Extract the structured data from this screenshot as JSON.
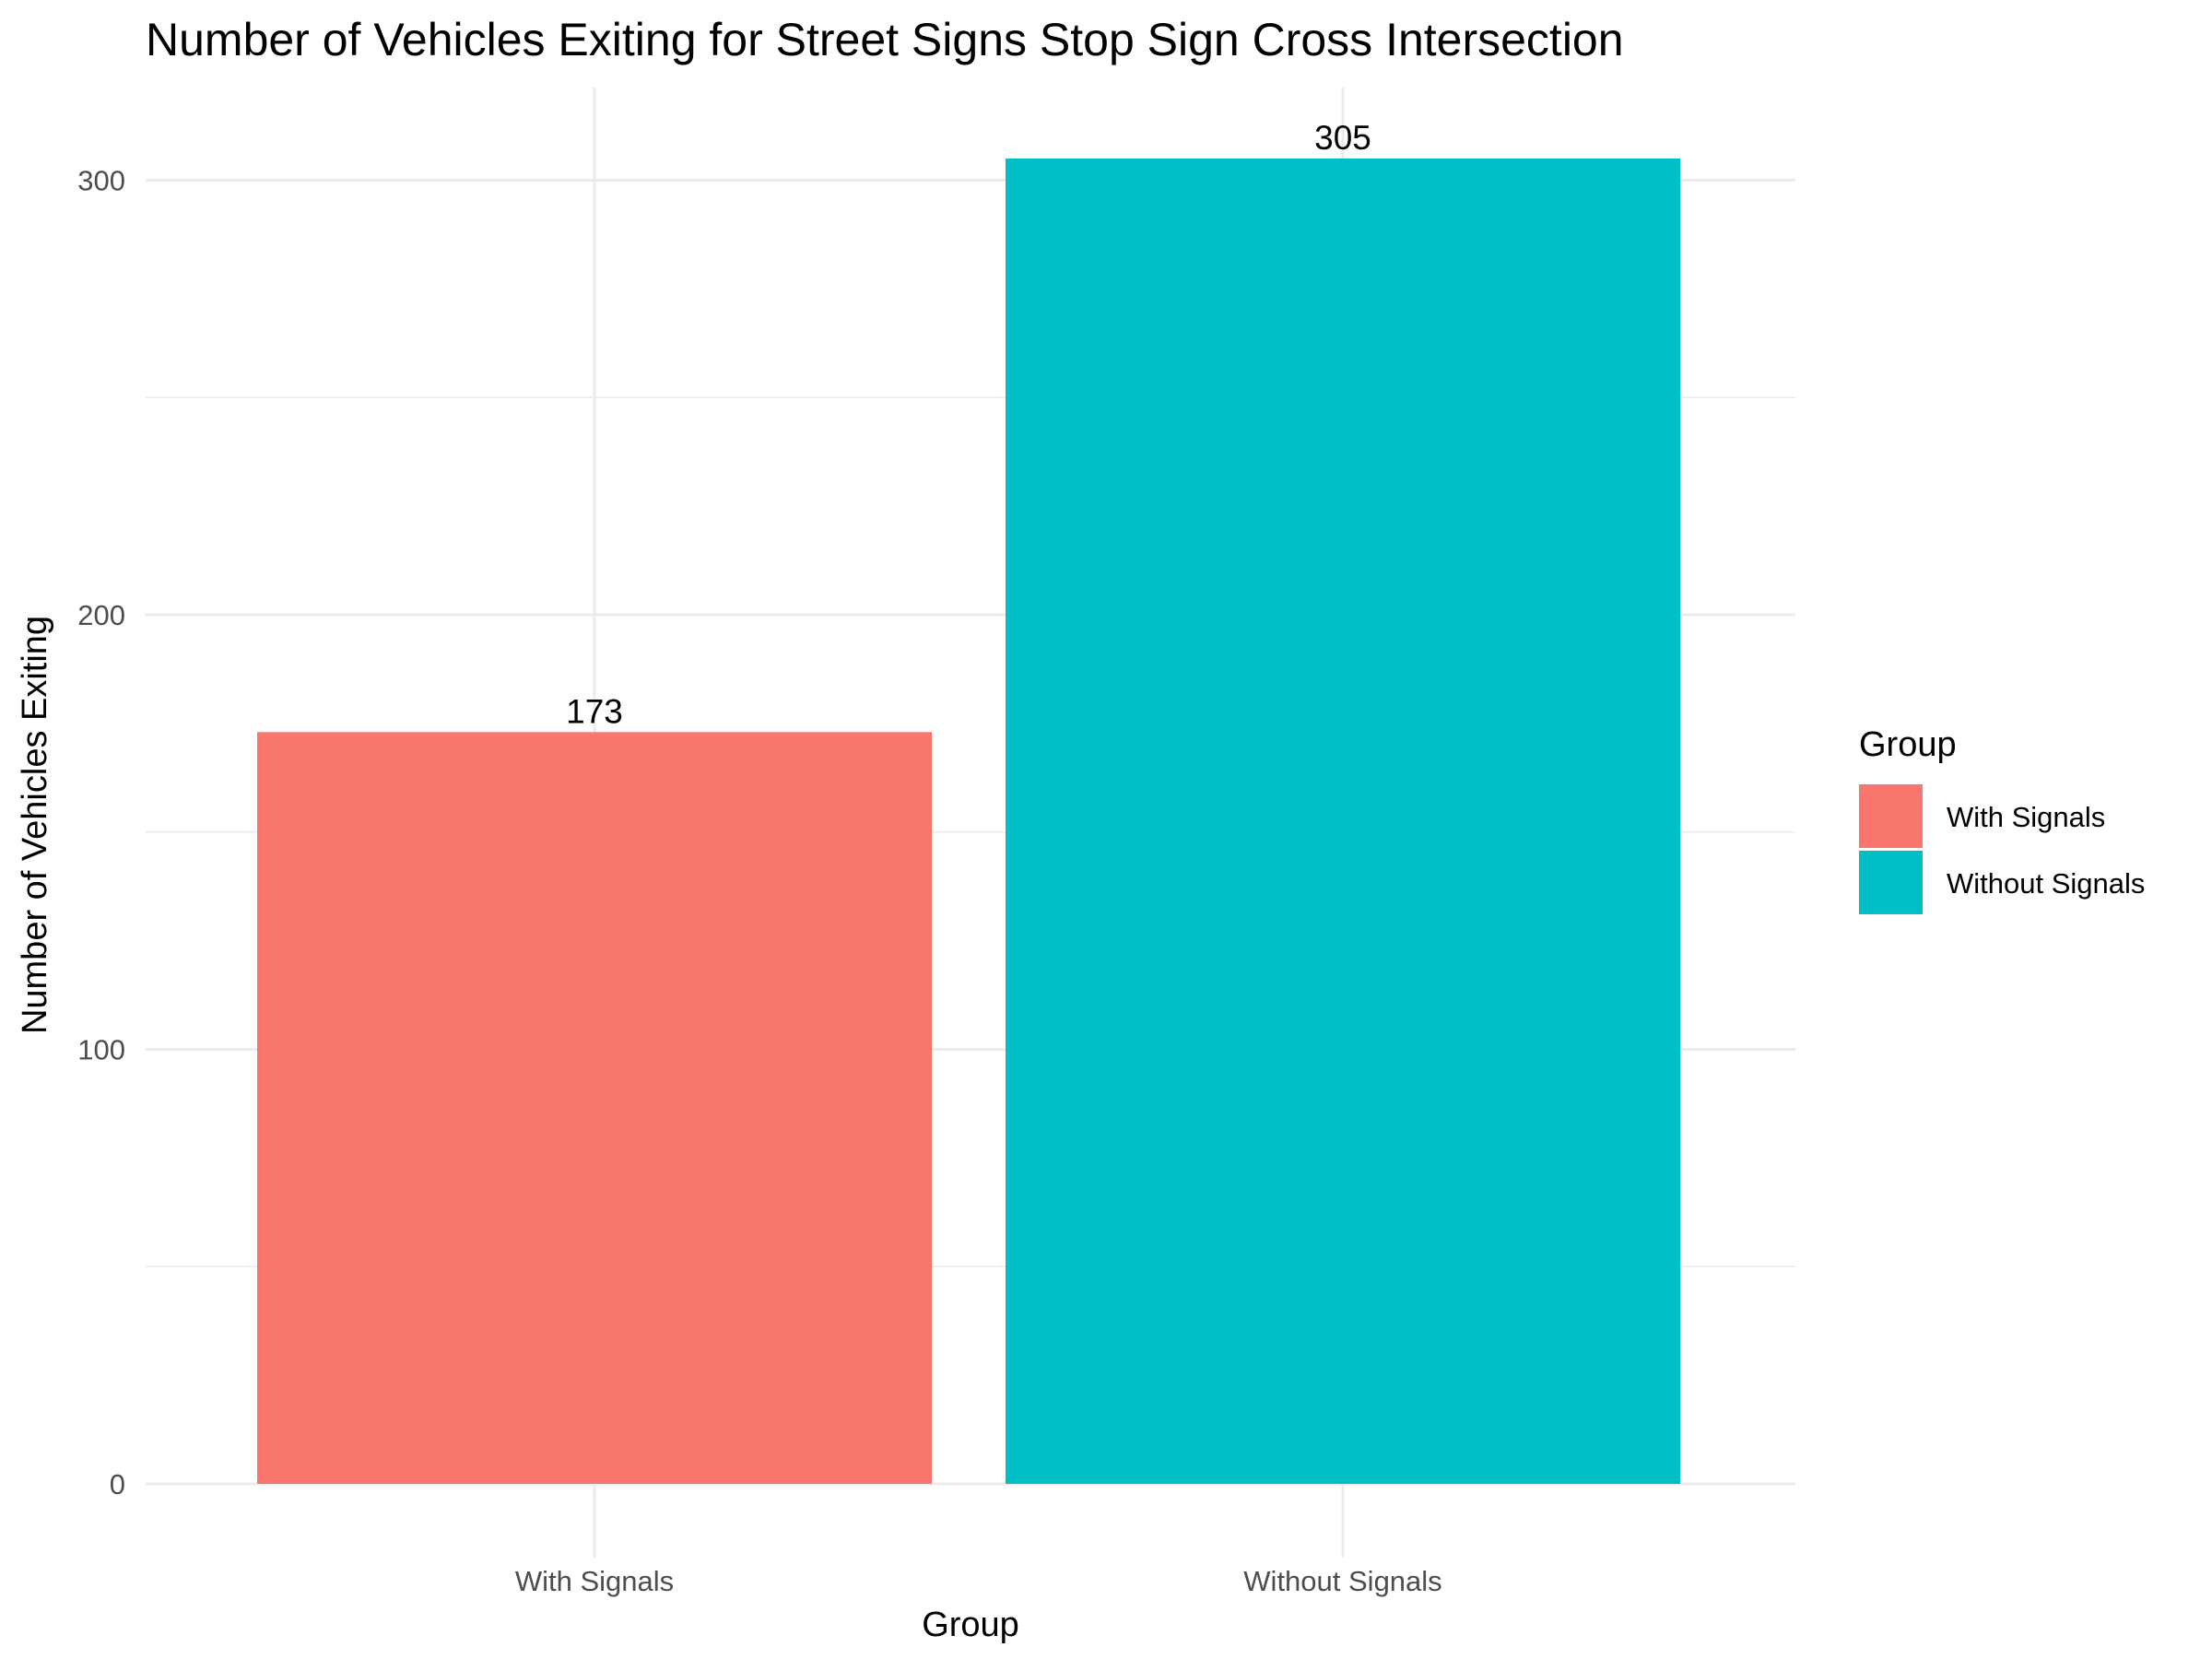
{
  "chart_data": {
    "type": "bar",
    "title": "Number of Vehicles Exiting for Street Signs Stop Sign Cross Intersection",
    "xlabel": "Group",
    "ylabel": "Number of Vehicles Exiting",
    "categories": [
      "With Signals",
      "Without Signals"
    ],
    "values": [
      173,
      305
    ],
    "data_labels": [
      "173",
      "305"
    ],
    "colors": [
      "#F8766D",
      "#00BFC4"
    ],
    "ylim": [
      0,
      321
    ],
    "y_ticks": [
      0,
      100,
      200,
      300
    ],
    "y_tick_labels": [
      "0",
      "100",
      "200",
      "300"
    ],
    "y_minor_ticks": [
      50,
      150,
      250
    ],
    "grid": true,
    "legend": {
      "title": "Group",
      "position": "right",
      "entries": [
        "With Signals",
        "Without Signals"
      ]
    }
  }
}
